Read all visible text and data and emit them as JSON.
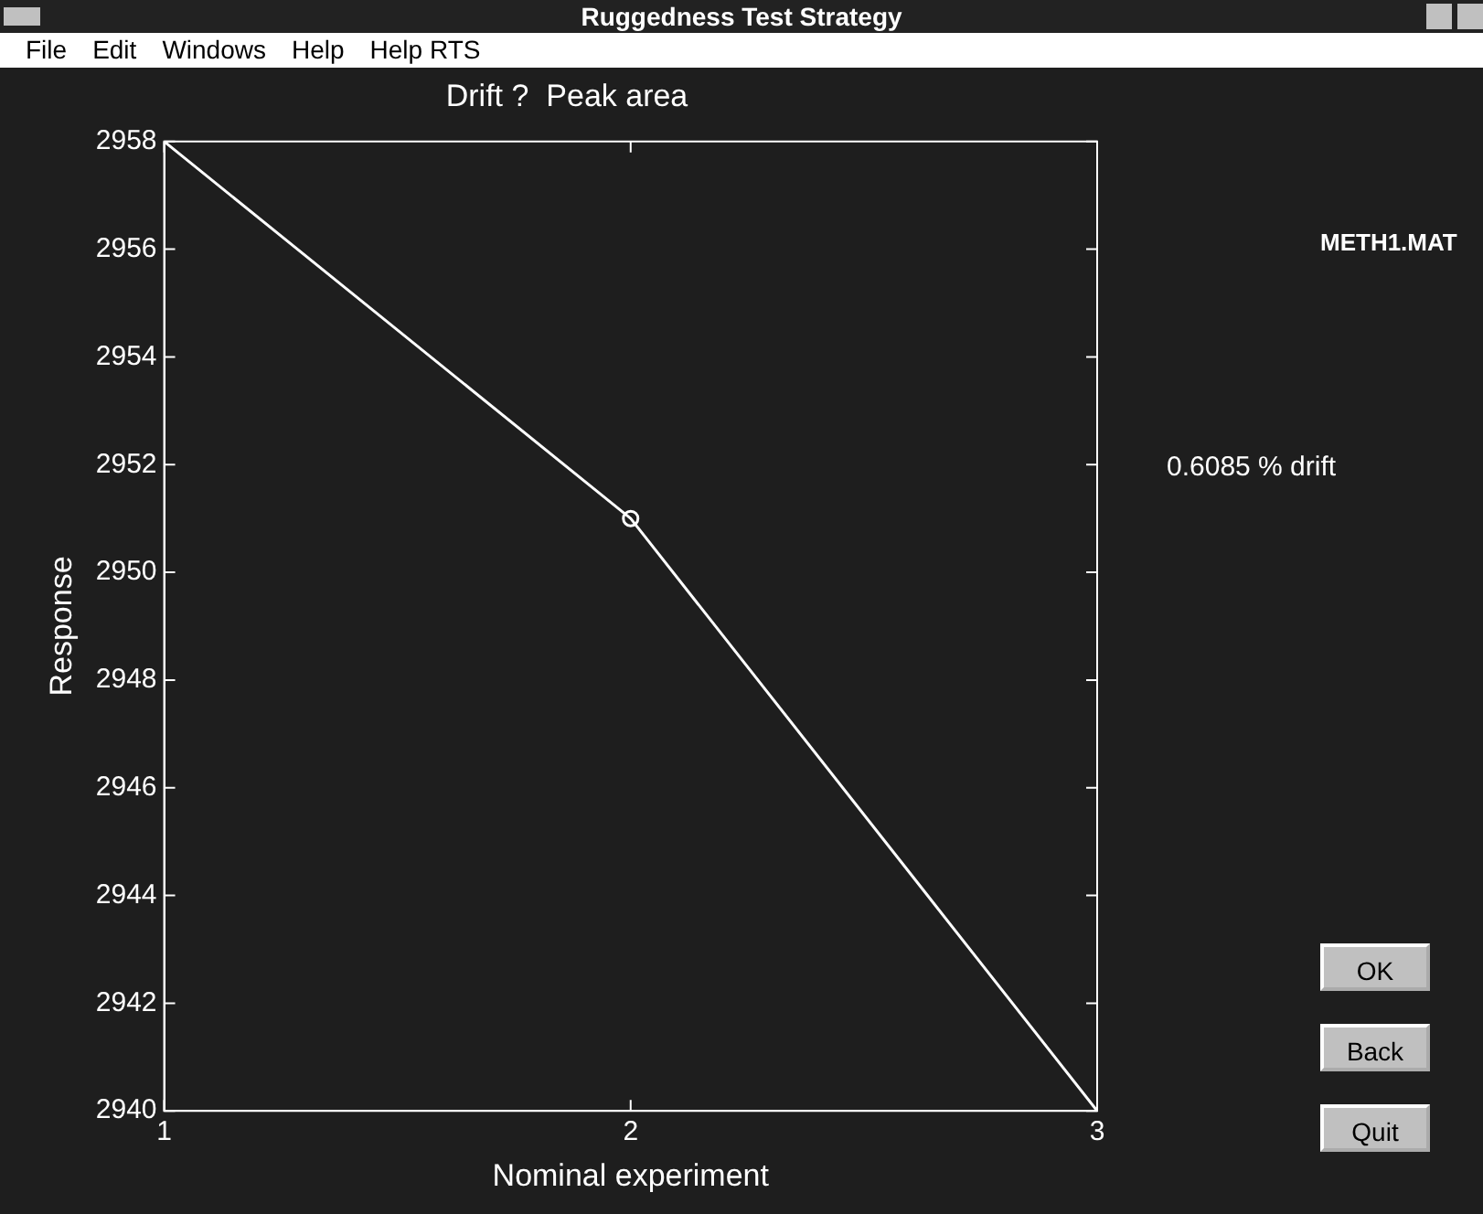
{
  "chart_data": {
    "type": "line",
    "title": "Drift ?  Peak area",
    "xlabel": "Nominal experiment",
    "ylabel": "Response",
    "x": [
      1,
      2,
      3
    ],
    "series": [
      {
        "color": "#ffffff",
        "values": [
          2958,
          2951,
          2940
        ],
        "marker": "none"
      },
      {
        "type": "scatter",
        "color": "#ffffff",
        "x": [
          2
        ],
        "values": [
          2951
        ],
        "marker": "circle"
      }
    ],
    "xlim": [
      1,
      3
    ],
    "xticks": [
      1,
      2,
      3
    ],
    "ylim": [
      2940,
      2958
    ],
    "yticks": [
      2940,
      2942,
      2944,
      2946,
      2948,
      2950,
      2952,
      2954,
      2956,
      2958
    ],
    "grid": false,
    "legend": false,
    "annotations": [
      "Ruggedness Test Strategy",
      "File",
      "Edit",
      "Windows",
      "Help",
      "Help RTS",
      "METH1.MAT",
      "0.6085 % drift",
      "OK",
      "Back",
      "Quit"
    ]
  }
}
